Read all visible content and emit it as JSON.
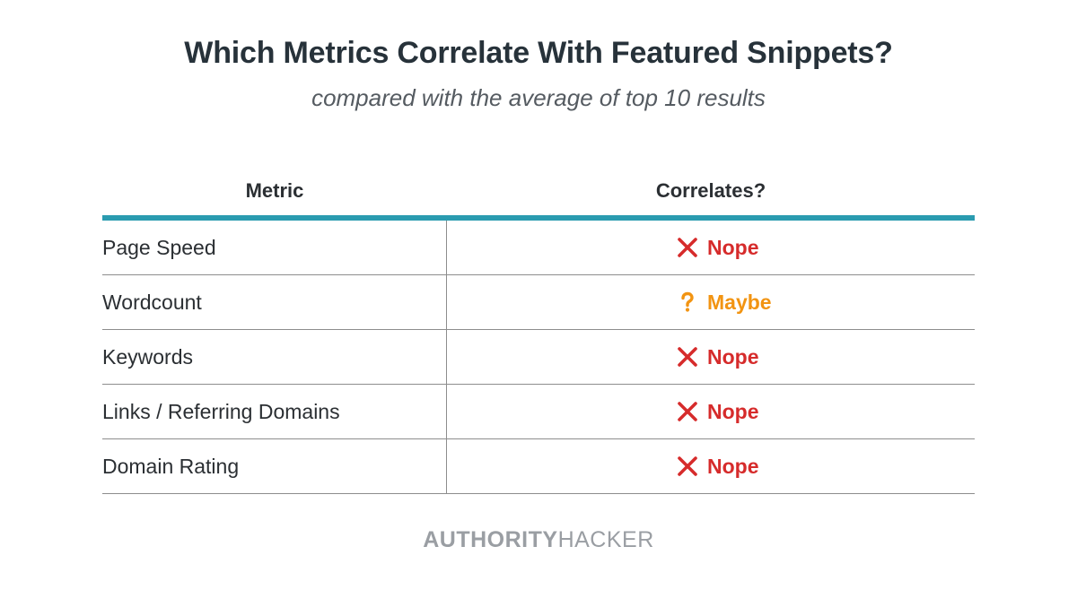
{
  "title": "Which Metrics Correlate With Featured Snippets?",
  "subtitle": "compared with the average of top 10 results",
  "chart_data": {
    "type": "table",
    "columns": [
      "Metric",
      "Correlates?"
    ],
    "rows": [
      {
        "metric": "Page Speed",
        "verdict": "Nope",
        "status": "no"
      },
      {
        "metric": "Wordcount",
        "verdict": "Maybe",
        "status": "maybe"
      },
      {
        "metric": "Keywords",
        "verdict": "Nope",
        "status": "no"
      },
      {
        "metric": "Links / Referring Domains",
        "verdict": "Nope",
        "status": "no"
      },
      {
        "metric": "Domain Rating",
        "verdict": "Nope",
        "status": "no"
      }
    ]
  },
  "icons": {
    "no": "x-mark-icon",
    "maybe": "question-mark-icon"
  },
  "colors": {
    "header_rule": "#2a9bb0",
    "nope": "#d62b2b",
    "maybe": "#f29412"
  },
  "brand": {
    "part1": "AUTHORITY",
    "part2": "HACKER"
  }
}
